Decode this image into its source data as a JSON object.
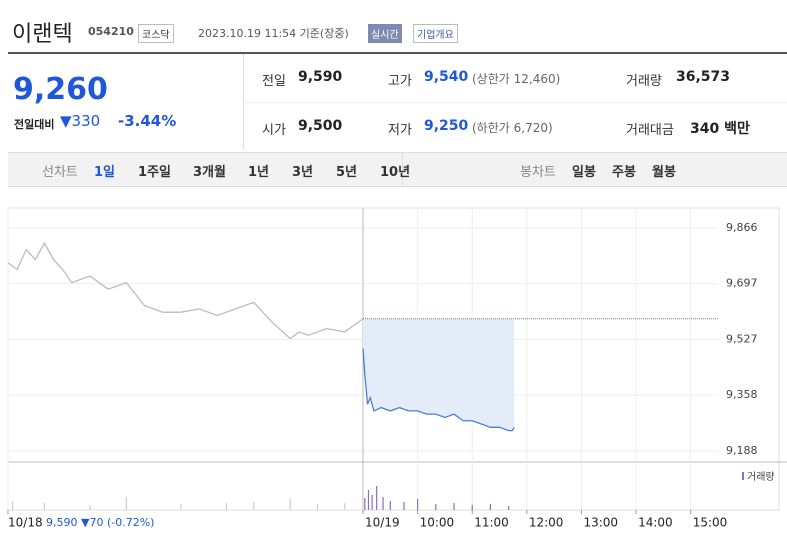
{
  "header": {
    "name": "이랜텍",
    "code": "054210",
    "market": "코스닥",
    "datetime": "2023.10.19 11:54 기준(장중)",
    "realtime": "실시간",
    "overview": "기업개요"
  },
  "price": {
    "current": "9,260",
    "change_label": "전일대비",
    "change": "330",
    "change_pct": "-3.44%"
  },
  "stats": [
    {
      "label": "전일",
      "value": "9,590"
    },
    {
      "label": "고가",
      "value": "9,540",
      "note": "(상한가 12,460)"
    },
    {
      "label": "거래량",
      "value": "36,573"
    },
    {
      "label": "시가",
      "value": "9,500"
    },
    {
      "label": "저가",
      "value": "9,250",
      "note": "(하한가 6,720)"
    },
    {
      "label": "거래대금",
      "value": "340 백만"
    }
  ],
  "tabs": {
    "line_label": "선차트",
    "line_options": [
      "1일",
      "1주일",
      "3개월",
      "1년",
      "3년",
      "5년",
      "10년"
    ],
    "candle_label": "봉차트",
    "candle_options": [
      "일봉",
      "주봉",
      "월봉"
    ]
  },
  "chart_data": {
    "type": "line",
    "xlim": [
      -390,
      390
    ],
    "ylim": [
      9188,
      9866
    ],
    "yticks": [
      {
        "value": 9866,
        "label": "9,866"
      },
      {
        "value": 9697,
        "label": "9,697"
      },
      {
        "value": 9527,
        "label": "9,527"
      },
      {
        "value": 9358,
        "label": "9,358"
      },
      {
        "value": 9188,
        "label": "9,188"
      }
    ],
    "xticks": [
      {
        "value": -390,
        "label": "10/18"
      },
      {
        "value": 0,
        "label": "10/19"
      },
      {
        "value": 60,
        "label": "10:00"
      },
      {
        "value": 120,
        "label": "11:00"
      },
      {
        "value": 180,
        "label": "12:00"
      },
      {
        "value": 240,
        "label": "13:00"
      },
      {
        "value": 300,
        "label": "14:00"
      },
      {
        "value": 360,
        "label": "15:00"
      }
    ],
    "reference": 9590,
    "prev_day_info": "9,590 ▼70 (-0.72%)",
    "volume_label": "거래량",
    "volume_lim": [
      0,
      3000
    ],
    "series": [
      {
        "name": "10/18",
        "color": "#bbbbbb",
        "x": [
          -390,
          -380,
          -370,
          -360,
          -350,
          -340,
          -330,
          -320,
          -300,
          -280,
          -260,
          -240,
          -220,
          -200,
          -180,
          -160,
          -140,
          -120,
          -100,
          -80,
          -70,
          -60,
          -40,
          -20,
          -10,
          0
        ],
        "values": [
          9760,
          9740,
          9800,
          9770,
          9820,
          9770,
          9740,
          9700,
          9720,
          9680,
          9700,
          9630,
          9610,
          9610,
          9620,
          9600,
          9620,
          9640,
          9580,
          9530,
          9550,
          9540,
          9560,
          9550,
          9570,
          9590
        ]
      },
      {
        "name": "10/19",
        "color": "#4a7fd4",
        "x": [
          0,
          2,
          5,
          8,
          12,
          20,
          30,
          40,
          50,
          60,
          70,
          80,
          90,
          100,
          110,
          120,
          130,
          140,
          150,
          160,
          164,
          166
        ],
        "values": [
          9500,
          9420,
          9330,
          9350,
          9310,
          9320,
          9310,
          9320,
          9310,
          9310,
          9300,
          9300,
          9290,
          9300,
          9280,
          9280,
          9270,
          9260,
          9260,
          9250,
          9250,
          9260
        ]
      }
    ],
    "volume": {
      "x": [
        -385,
        -350,
        -300,
        -260,
        -200,
        -150,
        -120,
        -80,
        -50,
        -20,
        2,
        6,
        10,
        15,
        22,
        30,
        45,
        60,
        80,
        100,
        120,
        140,
        160
      ],
      "values": [
        900,
        700,
        500,
        1300,
        600,
        700,
        800,
        1200,
        600,
        700,
        1200,
        2000,
        1500,
        2400,
        1300,
        900,
        800,
        1100,
        600,
        700,
        500,
        600,
        400
      ]
    }
  }
}
